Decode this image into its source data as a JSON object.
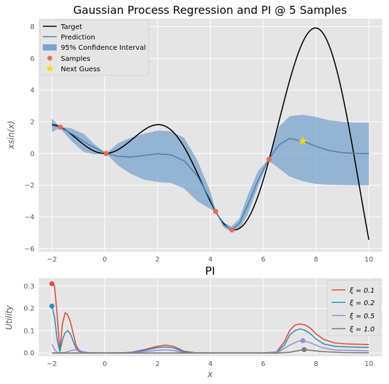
{
  "chart_data": [
    {
      "type": "line",
      "title": "Gaussian Process Regression and PI @ 5 Samples",
      "xlabel": "",
      "ylabel": "xsin(x)",
      "xlim": [
        -2.5,
        10.5
      ],
      "ylim": [
        -6.2,
        8.5
      ],
      "xticks": [
        -2,
        0,
        2,
        4,
        6,
        8,
        10
      ],
      "yticks": [
        -6,
        -4,
        -2,
        0,
        2,
        4,
        6,
        8
      ],
      "grid": true,
      "legend_position": "top-left",
      "legend": [
        "Target",
        "Prediction",
        "95% Confidence Interval",
        "Samples",
        "Next Guess"
      ],
      "target": {
        "name": "Target",
        "color": "#000000",
        "function": "x*sin(x)",
        "x_range": [
          -2,
          10
        ]
      },
      "prediction": {
        "name": "Prediction",
        "color": "#4a82b4",
        "x": [
          -2.0,
          -1.7,
          -1.2,
          -0.6,
          0.05,
          0.5,
          1.0,
          1.5,
          2.0,
          2.5,
          3.0,
          3.5,
          4.0,
          4.2,
          4.5,
          4.8,
          5.1,
          5.4,
          5.8,
          6.2,
          6.6,
          7.0,
          7.5,
          8.0,
          8.5,
          9.0,
          9.5,
          10.0
        ],
        "y": [
          1.78,
          1.65,
          1.2,
          0.55,
          0.0,
          -0.18,
          -0.22,
          -0.12,
          -0.02,
          -0.08,
          -0.45,
          -1.4,
          -2.9,
          -3.65,
          -4.5,
          -4.8,
          -4.4,
          -3.3,
          -1.7,
          -0.4,
          0.55,
          0.95,
          0.78,
          0.45,
          0.18,
          0.05,
          0.01,
          0.0
        ]
      },
      "confidence_interval": {
        "name": "95% Confidence Interval",
        "color": "#7aa3cc",
        "x": [
          -2.0,
          -1.7,
          -1.3,
          -0.8,
          -0.4,
          0.05,
          0.5,
          1.0,
          1.5,
          2.0,
          2.5,
          3.0,
          3.5,
          4.0,
          4.2,
          4.5,
          4.8,
          5.1,
          5.4,
          5.8,
          6.2,
          6.6,
          7.0,
          7.5,
          8.0,
          8.5,
          9.0,
          9.5,
          10.0
        ],
        "lower": [
          1.35,
          1.62,
          0.85,
          0.1,
          -0.05,
          0.0,
          -0.75,
          -1.3,
          -1.65,
          -1.8,
          -1.85,
          -2.2,
          -3.0,
          -3.5,
          -3.7,
          -4.65,
          -4.95,
          -4.75,
          -3.9,
          -2.1,
          -0.45,
          -0.95,
          -1.45,
          -1.75,
          -1.92,
          -1.97,
          -1.99,
          -2.0,
          -2.0
        ],
        "upper": [
          2.2,
          1.68,
          1.6,
          1.25,
          0.6,
          0.0,
          0.65,
          1.0,
          1.25,
          1.45,
          1.4,
          1.0,
          -0.4,
          -2.4,
          -3.6,
          -4.35,
          -4.6,
          -4.1,
          -2.7,
          -1.1,
          -0.35,
          1.7,
          2.35,
          2.45,
          2.3,
          2.1,
          2.0,
          1.95,
          1.95
        ]
      },
      "samples": {
        "name": "Samples",
        "color": "#f06a4c",
        "x": [
          -1.68,
          0.05,
          4.2,
          4.82,
          6.22
        ],
        "y": [
          1.66,
          0.0,
          -3.65,
          -4.82,
          -0.38
        ]
      },
      "next_guess": {
        "name": "Next Guess",
        "color": "#ffd700",
        "x": 7.5,
        "y": 0.78
      }
    },
    {
      "type": "line",
      "title": "PI",
      "xlabel": "x",
      "ylabel": "Utility",
      "xlim": [
        -2.5,
        10.5
      ],
      "ylim": [
        -0.015,
        0.335
      ],
      "xticks": [
        -2,
        0,
        2,
        4,
        6,
        8,
        10
      ],
      "yticks": [
        0.0,
        0.1,
        0.2,
        0.3
      ],
      "ytick_labels": [
        "0.0",
        "0.1",
        "0.2",
        "0.3"
      ],
      "grid": true,
      "legend_position": "top-right",
      "series": [
        {
          "name": "ξ = 0.1",
          "color": "#e24a33",
          "x": [
            -2.0,
            -1.9,
            -1.8,
            -1.7,
            -1.6,
            -1.5,
            -1.4,
            -1.3,
            -1.2,
            -1.1,
            -1.0,
            -0.8,
            -0.6,
            -0.4,
            -0.2,
            0.0,
            0.5,
            1.0,
            1.5,
            2.0,
            2.3,
            2.6,
            3.0,
            3.5,
            4.0,
            5.0,
            6.0,
            6.5,
            6.8,
            7.0,
            7.2,
            7.4,
            7.6,
            7.8,
            8.0,
            8.3,
            8.7,
            9.2,
            10.0
          ],
          "y": [
            0.31,
            0.3,
            0.17,
            0.01,
            0.13,
            0.18,
            0.17,
            0.14,
            0.09,
            0.04,
            0.015,
            0.003,
            0.001,
            0.0,
            0.0,
            0.0,
            0.0,
            0.003,
            0.015,
            0.03,
            0.035,
            0.03,
            0.008,
            0.0,
            0.0,
            0.0,
            0.0,
            0.004,
            0.05,
            0.1,
            0.125,
            0.13,
            0.125,
            0.11,
            0.085,
            0.06,
            0.045,
            0.04,
            0.038
          ],
          "marker": {
            "x": -2.0,
            "y": 0.31
          }
        },
        {
          "name": "ξ = 0.2",
          "color": "#348abd",
          "x": [
            -2.0,
            -1.9,
            -1.8,
            -1.7,
            -1.6,
            -1.5,
            -1.4,
            -1.3,
            -1.2,
            -1.1,
            -1.0,
            -0.8,
            -0.6,
            -0.4,
            0.0,
            0.5,
            1.0,
            1.5,
            2.0,
            2.3,
            2.6,
            3.0,
            3.5,
            4.0,
            5.0,
            6.0,
            6.5,
            6.8,
            7.0,
            7.2,
            7.4,
            7.6,
            7.8,
            8.0,
            8.3,
            8.7,
            9.2,
            10.0
          ],
          "y": [
            0.21,
            0.16,
            0.06,
            0.005,
            0.06,
            0.09,
            0.1,
            0.085,
            0.055,
            0.025,
            0.008,
            0.002,
            0.0,
            0.0,
            0.0,
            0.0,
            0.002,
            0.012,
            0.024,
            0.027,
            0.023,
            0.005,
            0.0,
            0.0,
            0.0,
            0.0,
            0.002,
            0.035,
            0.08,
            0.1,
            0.108,
            0.1,
            0.085,
            0.062,
            0.04,
            0.03,
            0.027,
            0.025
          ],
          "marker": {
            "x": -2.0,
            "y": 0.21
          }
        },
        {
          "name": "ξ = 0.5",
          "color": "#988ed5",
          "x": [
            -2.0,
            -1.9,
            -1.8,
            -1.7,
            -1.5,
            -1.3,
            -1.1,
            -0.9,
            -0.6,
            0.0,
            1.0,
            1.5,
            2.0,
            2.3,
            2.6,
            3.0,
            4.0,
            6.0,
            6.6,
            7.0,
            7.3,
            7.5,
            7.8,
            8.2,
            8.7,
            10.0
          ],
          "y": [
            0.04,
            0.015,
            0.002,
            0.0,
            0.002,
            0.01,
            0.015,
            0.008,
            0.001,
            0.0,
            0.001,
            0.006,
            0.012,
            0.014,
            0.011,
            0.002,
            0.0,
            0.0,
            0.006,
            0.035,
            0.052,
            0.055,
            0.045,
            0.025,
            0.013,
            0.01
          ],
          "marker": {
            "x": 7.5,
            "y": 0.055
          }
        },
        {
          "name": "ξ = 1.0",
          "color": "#777777",
          "x": [
            -2.0,
            -1.5,
            0.0,
            2.0,
            4.0,
            6.5,
            7.0,
            7.3,
            7.55,
            7.8,
            8.2,
            9.0,
            10.0
          ],
          "y": [
            0.0,
            0.0,
            0.0,
            0.0,
            0.0,
            0.0,
            0.003,
            0.01,
            0.015,
            0.012,
            0.006,
            0.002,
            0.001
          ],
          "marker": {
            "x": 7.55,
            "y": 0.015
          }
        }
      ]
    }
  ]
}
